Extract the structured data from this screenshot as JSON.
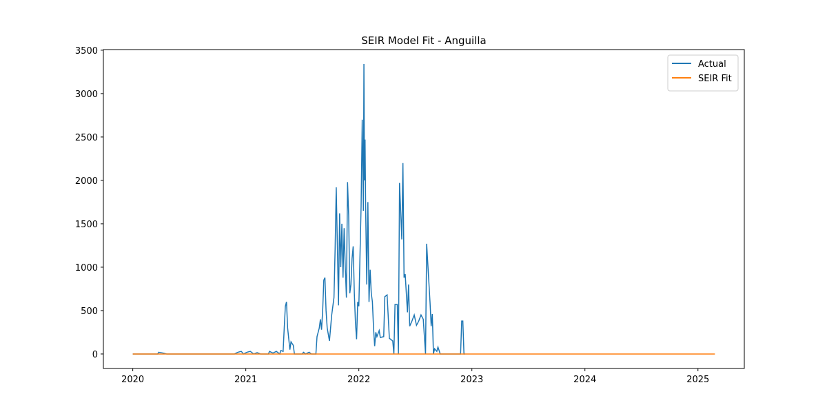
{
  "chart_data": {
    "type": "line",
    "title": "SEIR Model Fit - Anguilla",
    "xlim": [
      2019.74,
      2025.41
    ],
    "xticks": [
      2020,
      2021,
      2022,
      2023,
      2024,
      2025
    ],
    "ylim": [
      -167,
      3507
    ],
    "yticks": [
      0,
      500,
      1000,
      1500,
      2000,
      2500,
      3000,
      3500
    ],
    "legend": "upper right",
    "series": [
      {
        "name": "Actual",
        "color": "#1f77b4",
        "x": [
          2020.0,
          2020.22,
          2020.23,
          2020.27,
          2020.3,
          2020.9,
          2020.93,
          2020.96,
          2020.98,
          2021.01,
          2021.04,
          2021.07,
          2021.1,
          2021.13,
          2021.2,
          2021.21,
          2021.24,
          2021.27,
          2021.3,
          2021.31,
          2021.33,
          2021.34,
          2021.35,
          2021.36,
          2021.37,
          2021.39,
          2021.4,
          2021.42,
          2021.43,
          2021.5,
          2021.51,
          2021.53,
          2021.56,
          2021.58,
          2021.62,
          2021.63,
          2021.65,
          2021.66,
          2021.67,
          2021.68,
          2021.69,
          2021.7,
          2021.71,
          2021.72,
          2021.74,
          2021.76,
          2021.78,
          2021.79,
          2021.8,
          2021.81,
          2021.82,
          2021.83,
          2021.84,
          2021.85,
          2021.86,
          2021.87,
          2021.88,
          2021.89,
          2021.9,
          2021.91,
          2021.92,
          2021.93,
          2021.94,
          2021.95,
          2021.96,
          2021.97,
          2021.98,
          2021.99,
          2022.0,
          2022.02,
          2022.03,
          2022.04,
          2022.045,
          2022.05,
          2022.055,
          2022.06,
          2022.07,
          2022.08,
          2022.09,
          2022.1,
          2022.11,
          2022.12,
          2022.13,
          2022.14,
          2022.15,
          2022.16,
          2022.18,
          2022.19,
          2022.22,
          2022.23,
          2022.25,
          2022.27,
          2022.3,
          2022.31,
          2022.32,
          2022.34,
          2022.35,
          2022.36,
          2022.38,
          2022.39,
          2022.4,
          2022.41,
          2022.43,
          2022.44,
          2022.45,
          2022.47,
          2022.49,
          2022.51,
          2022.53,
          2022.55,
          2022.57,
          2022.59,
          2022.6,
          2022.63,
          2022.64,
          2022.65,
          2022.66,
          2022.67,
          2022.69,
          2022.7,
          2022.72,
          2022.9,
          2022.91,
          2022.92,
          2022.93,
          2022.94
        ],
        "values": [
          0,
          0,
          20,
          10,
          0,
          0,
          20,
          30,
          0,
          20,
          30,
          0,
          15,
          0,
          0,
          30,
          10,
          30,
          0,
          40,
          30,
          300,
          550,
          600,
          300,
          50,
          140,
          100,
          0,
          0,
          20,
          0,
          20,
          0,
          0,
          200,
          300,
          400,
          280,
          500,
          850,
          880,
          500,
          300,
          150,
          450,
          650,
          1200,
          1920,
          1250,
          560,
          1620,
          1000,
          1500,
          880,
          1450,
          1000,
          650,
          1980,
          1600,
          700,
          800,
          1100,
          1240,
          700,
          360,
          170,
          600,
          550,
          1700,
          2700,
          1650,
          3340,
          2000,
          2470,
          1700,
          800,
          1750,
          600,
          970,
          700,
          600,
          300,
          90,
          250,
          200,
          270,
          190,
          200,
          660,
          680,
          180,
          150,
          0,
          570,
          570,
          0,
          1970,
          1320,
          2200,
          880,
          920,
          480,
          800,
          320,
          380,
          450,
          330,
          380,
          450,
          400,
          0,
          1270,
          590,
          320,
          460,
          0,
          60,
          30,
          80,
          0,
          0,
          380,
          380,
          0,
          0
        ]
      },
      {
        "name": "SEIR Fit",
        "color": "#ff7f0e",
        "x": [
          2020.0,
          2025.15
        ],
        "values": [
          0,
          0
        ]
      }
    ]
  }
}
